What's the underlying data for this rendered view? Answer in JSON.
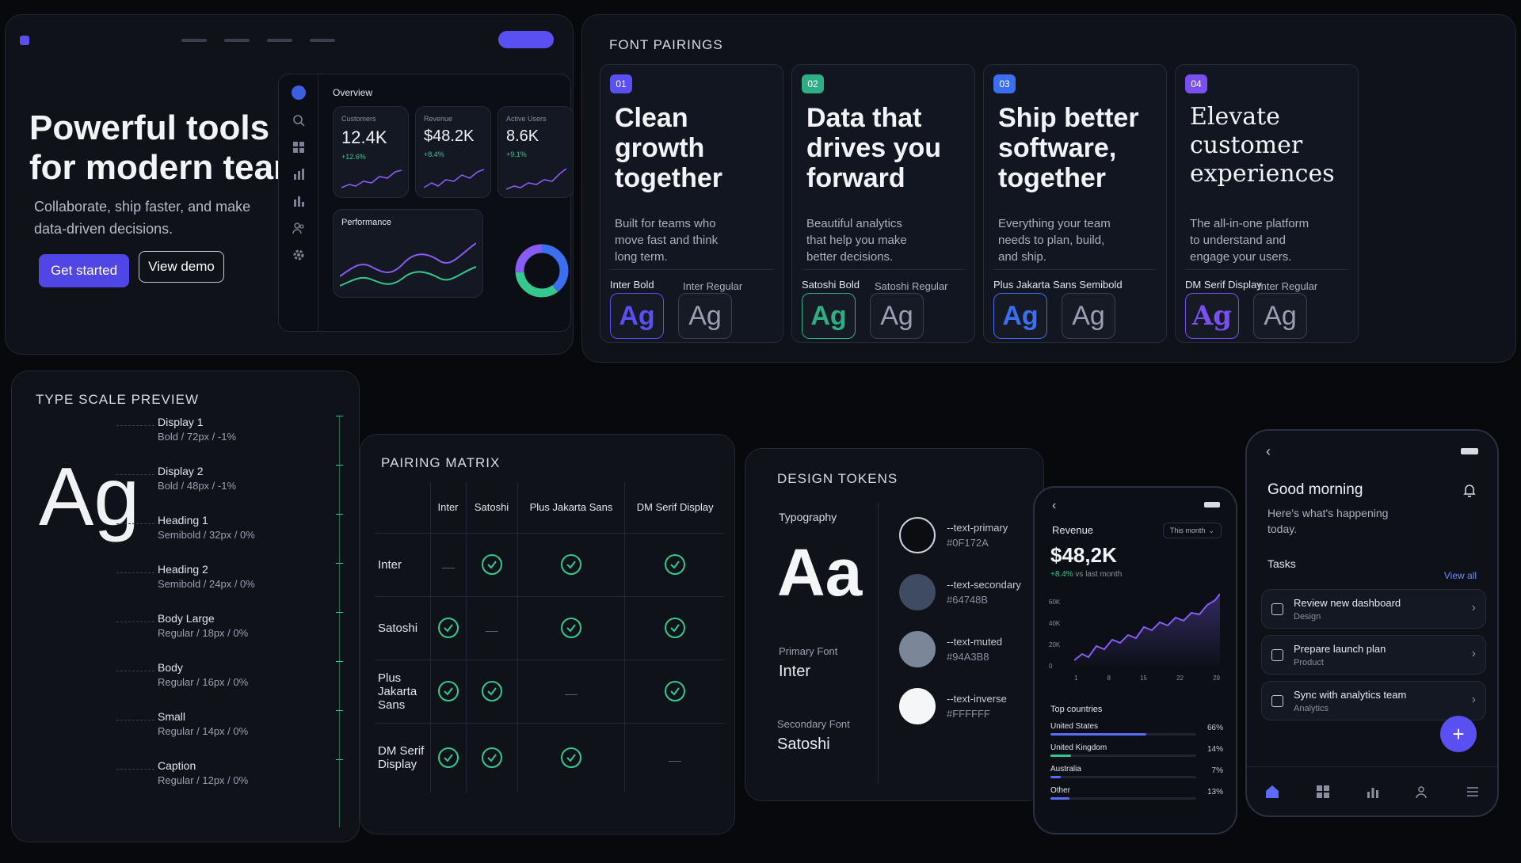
{
  "hero": {
    "title_line1": "Powerful tools",
    "title_line2": "for modern teams",
    "subtitle_line1": "Collaborate, ship faster, and make",
    "subtitle_line2": "data-driven decisions.",
    "primary_button": "Get started",
    "secondary_button": "View demo",
    "dashboard": {
      "title": "Overview",
      "stats": [
        {
          "label": "Customers",
          "value": "12.4K",
          "change": "+12.6%"
        },
        {
          "label": "Revenue",
          "value": "$48.2K",
          "change": "+8.4%"
        },
        {
          "label": "Active Users",
          "value": "8.6K",
          "change": "+9.1%"
        }
      ],
      "performance_title": "Performance",
      "sidebar_icons": [
        "logo-icon",
        "search-icon",
        "grid-icon",
        "bar-chart-icon",
        "analytics-icon",
        "users-icon",
        "settings-icon"
      ]
    },
    "colors": {
      "accent": "#5a4ff0",
      "success": "#35c88e",
      "purple": "#8a5cf6"
    }
  },
  "font_pairings": {
    "heading": "FONT PAIRINGS",
    "cards": [
      {
        "num": "01",
        "title": [
          "Clean",
          "growth",
          "together"
        ],
        "desc": [
          "Built for teams who",
          "move fast and think",
          "long term."
        ],
        "font1": "Inter Bold",
        "font2": "Inter Regular",
        "sample": "Ag",
        "color": "#5a4ff0"
      },
      {
        "num": "02",
        "title": [
          "Data that",
          "drives you",
          "forward"
        ],
        "desc": [
          "Beautiful analytics",
          "that help you make",
          "better decisions."
        ],
        "font1": "Satoshi Bold",
        "font2": "Satoshi Regular",
        "sample": "Ag",
        "color": "#2fae86"
      },
      {
        "num": "03",
        "title": [
          "Ship better",
          "software,",
          "together"
        ],
        "desc": [
          "Everything your team",
          "needs to plan, build,",
          "and ship."
        ],
        "font1": "Plus Jakarta Sans Semibold",
        "font2": "",
        "sample": "Ag",
        "color": "#3b6ff0"
      },
      {
        "num": "04",
        "title": [
          "Elevate",
          "customer",
          "experiences"
        ],
        "desc": [
          "The all-in-one platform",
          "to understand and",
          "engage your users."
        ],
        "font1": "DM Serif Display",
        "font2": "Inter Regular",
        "sample": "Ag",
        "color": "#7a4ff0"
      }
    ]
  },
  "type_scale": {
    "heading": "TYPE SCALE PREVIEW",
    "sample": "Ag",
    "rows": [
      {
        "name": "Display 1",
        "spec": "Bold / 72px / -1%"
      },
      {
        "name": "Display 2",
        "spec": "Bold / 48px / -1%"
      },
      {
        "name": "Heading 1",
        "spec": "Semibold / 32px / 0%"
      },
      {
        "name": "Heading 2",
        "spec": "Semibold / 24px / 0%"
      },
      {
        "name": "Body Large",
        "spec": "Regular / 18px / 0%"
      },
      {
        "name": "Body",
        "spec": "Regular / 16px / 0%"
      },
      {
        "name": "Small",
        "spec": "Regular / 14px / 0%"
      },
      {
        "name": "Caption",
        "spec": "Regular / 12px / 0%"
      }
    ]
  },
  "pairing_matrix": {
    "heading": "PAIRING MATRIX",
    "columns": [
      "Inter",
      "Satoshi",
      "Plus Jakarta Sans",
      "DM Serif Display"
    ],
    "rows": [
      {
        "label": "Inter",
        "cells": [
          "dash",
          "check",
          "check",
          "check"
        ]
      },
      {
        "label": "Satoshi",
        "cells": [
          "check",
          "dash",
          "check",
          "check"
        ]
      },
      {
        "label": "Plus Jakarta Sans",
        "cells": [
          "check",
          "check",
          "dash",
          "check"
        ]
      },
      {
        "label": "DM Serif Display",
        "cells": [
          "check",
          "check",
          "check",
          "dash"
        ]
      }
    ]
  },
  "design_tokens": {
    "heading": "DESIGN TOKENS",
    "typography_label": "Typography",
    "sample": "Aa",
    "primary_label": "Primary Font",
    "primary_value": "Inter",
    "secondary_label": "Secondary Font",
    "secondary_value": "Satoshi",
    "tokens": [
      {
        "name": "--text-primary",
        "hex": "#0F172A"
      },
      {
        "name": "--text-secondary",
        "hex": "#64748B"
      },
      {
        "name": "--text-muted",
        "hex": "#94A3B8"
      },
      {
        "name": "--text-inverse",
        "hex": "#FFFFFF"
      }
    ]
  },
  "phone_revenue": {
    "title": "Revenue",
    "period": "This month",
    "value": "$48,2K",
    "change": "+8.4%",
    "change_note": "vs last month",
    "y_ticks": [
      "60K",
      "40K",
      "20K",
      "0"
    ],
    "x_ticks": [
      "1",
      "8",
      "15",
      "22",
      "29"
    ],
    "countries_title": "Top countries",
    "countries": [
      {
        "name": "United States",
        "pct": "66%",
        "share": 0.66
      },
      {
        "name": "United Kingdom",
        "pct": "14%",
        "share": 0.14
      },
      {
        "name": "Australia",
        "pct": "7%",
        "share": 0.07
      },
      {
        "name": "Other",
        "pct": "13%",
        "share": 0.13
      }
    ]
  },
  "phone_tasks": {
    "greeting": "Good morning",
    "subtitle_line1": "Here's what's happening",
    "subtitle_line2": "today.",
    "tasks_title": "Tasks",
    "view_all": "View all",
    "tasks": [
      {
        "title": "Review new dashboard",
        "tag": "Design"
      },
      {
        "title": "Prepare launch plan",
        "tag": "Product"
      },
      {
        "title": "Sync with analytics team",
        "tag": "Analytics"
      }
    ],
    "fab": "+"
  }
}
